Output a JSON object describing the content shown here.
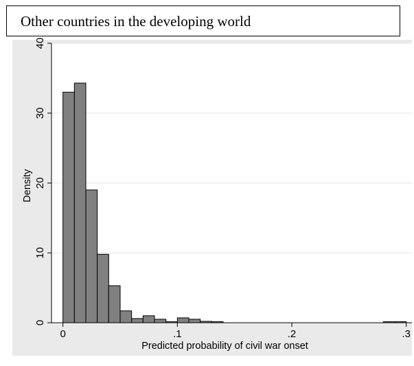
{
  "caption": "Other countries in the developing world",
  "chart_data": {
    "type": "bar",
    "subtype": "histogram",
    "xlabel": "Predicted probability of civil war onset",
    "ylabel": "Density",
    "xlim": [
      -0.01,
      0.305
    ],
    "ylim": [
      0,
      40
    ],
    "x_ticks": [
      {
        "value": 0,
        "label": "0"
      },
      {
        "value": 0.1,
        "label": ".1"
      },
      {
        "value": 0.2,
        "label": ".2"
      },
      {
        "value": 0.3,
        "label": ".3"
      }
    ],
    "y_ticks": [
      {
        "value": 0,
        "label": "0"
      },
      {
        "value": 10,
        "label": "10"
      },
      {
        "value": 20,
        "label": "20"
      },
      {
        "value": 30,
        "label": "30"
      },
      {
        "value": 40,
        "label": "40"
      }
    ],
    "grid": true,
    "bin_width": 0.01,
    "bins": [
      {
        "start": 0.0,
        "density": 33.0
      },
      {
        "start": 0.01,
        "density": 34.3
      },
      {
        "start": 0.02,
        "density": 19.0
      },
      {
        "start": 0.03,
        "density": 9.8
      },
      {
        "start": 0.04,
        "density": 5.3
      },
      {
        "start": 0.05,
        "density": 1.7
      },
      {
        "start": 0.06,
        "density": 0.6
      },
      {
        "start": 0.07,
        "density": 1.0
      },
      {
        "start": 0.08,
        "density": 0.5
      },
      {
        "start": 0.09,
        "density": 0.1
      },
      {
        "start": 0.1,
        "density": 0.7
      },
      {
        "start": 0.11,
        "density": 0.5
      },
      {
        "start": 0.12,
        "density": 0.2
      },
      {
        "start": 0.13,
        "density": 0.05
      },
      {
        "start": 0.28,
        "density": 0.05
      },
      {
        "start": 0.29,
        "density": 0.05
      }
    ],
    "bar_color": "#808080",
    "bar_edge_color": "#000000",
    "plot_background": "#ffffff",
    "panel_background": "#eaeaea",
    "gridline_color": "#e6e6e6"
  }
}
